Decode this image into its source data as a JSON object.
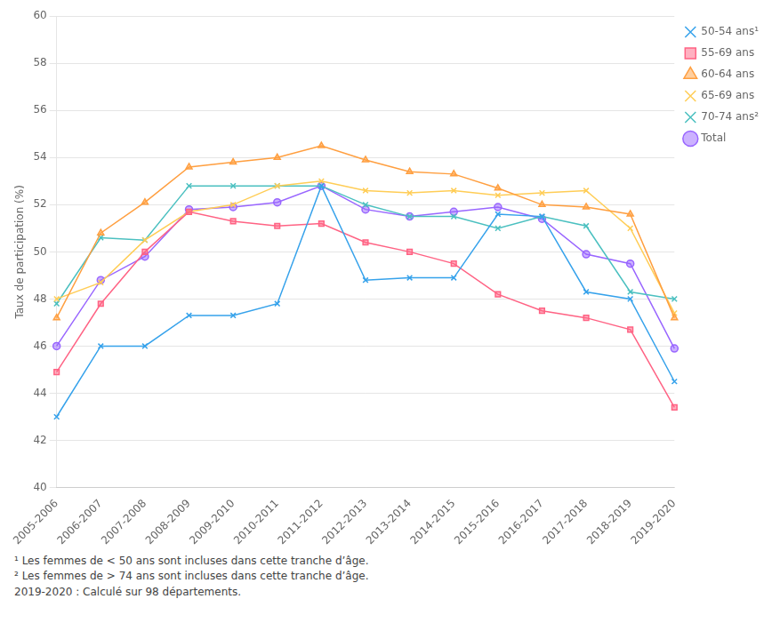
{
  "chart_data": {
    "type": "line",
    "ylabel": "Taux de participation (%)",
    "categories": [
      "2005-2006",
      "2006-2007",
      "2007-2008",
      "2008-2009",
      "2009-2010",
      "2010-2011",
      "2011-2012",
      "2012-2013",
      "2013-2014",
      "2014-2015",
      "2015-2016",
      "2016-2017",
      "2017-2018",
      "2018-2019",
      "2019-2020"
    ],
    "series": [
      {
        "name": "50-54 ans¹",
        "marker": "x",
        "values": [
          43.0,
          46.0,
          46.0,
          47.3,
          47.3,
          47.8,
          52.8,
          48.8,
          48.9,
          48.9,
          51.6,
          51.5,
          48.3,
          48.0,
          44.5
        ]
      },
      {
        "name": "55-69 ans",
        "marker": "square",
        "values": [
          44.9,
          47.8,
          50.0,
          51.7,
          51.3,
          51.1,
          51.2,
          50.4,
          50.0,
          49.5,
          48.2,
          47.5,
          47.2,
          46.7,
          43.4
        ]
      },
      {
        "name": "60-64 ans",
        "marker": "triangle",
        "values": [
          47.2,
          50.8,
          52.1,
          53.6,
          53.8,
          54.0,
          54.5,
          53.9,
          53.4,
          53.3,
          52.7,
          52.0,
          51.9,
          51.6,
          47.2
        ]
      },
      {
        "name": "65-69 ans",
        "marker": "x",
        "values": [
          48.0,
          48.7,
          50.5,
          51.7,
          52.0,
          52.8,
          53.0,
          52.6,
          52.5,
          52.6,
          52.4,
          52.5,
          52.6,
          51.0,
          47.4
        ]
      },
      {
        "name": "70-74 ans²",
        "marker": "x",
        "values": [
          47.8,
          50.6,
          50.5,
          52.8,
          52.8,
          52.8,
          52.8,
          52.0,
          51.5,
          51.5,
          51.0,
          51.5,
          51.1,
          48.3,
          48.0
        ]
      },
      {
        "name": "Total",
        "marker": "circle",
        "values": [
          46.0,
          48.8,
          49.8,
          51.8,
          51.9,
          52.1,
          52.8,
          51.8,
          51.5,
          51.7,
          51.9,
          51.4,
          49.9,
          49.5,
          45.9
        ]
      }
    ],
    "ylim": [
      40,
      60
    ],
    "yticks": [
      40,
      42,
      44,
      46,
      48,
      50,
      52,
      54,
      56,
      58,
      60
    ],
    "grid": true,
    "legend": "right",
    "annotations": [
      "¹ Les femmes de < 50 ans sont incluses dans cette tranche d’âge.",
      "² Les femmes de > 74 ans sont incluses dans cette tranche d’âge.",
      "2019-2020 : Calculé sur 98 départements."
    ]
  }
}
